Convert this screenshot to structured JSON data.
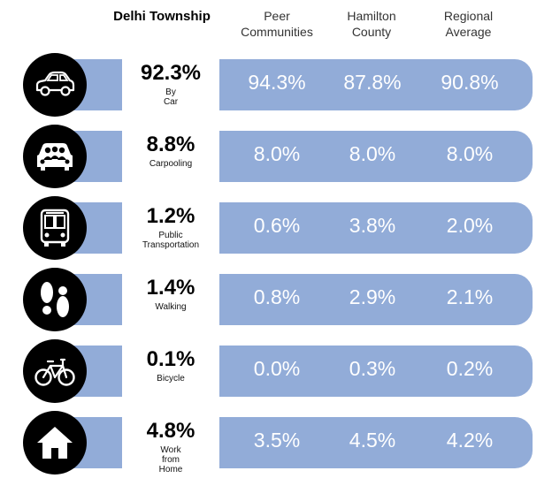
{
  "headers": {
    "delhi": "Delhi Township",
    "peer": "Peer Communities",
    "hamilton": "Hamilton County",
    "regional": "Regional Average"
  },
  "rows": [
    {
      "icon": "car-icon",
      "mode": "By Car",
      "delhi": "92.3%",
      "peer": "94.3%",
      "hamilton": "87.8%",
      "regional": "90.8%"
    },
    {
      "icon": "carpool-icon",
      "mode": "Carpooling",
      "delhi": "8.8%",
      "peer": "8.0%",
      "hamilton": "8.0%",
      "regional": "8.0%"
    },
    {
      "icon": "bus-icon",
      "mode": "Public Transportation",
      "delhi": "1.2%",
      "peer": "0.6%",
      "hamilton": "3.8%",
      "regional": "2.0%"
    },
    {
      "icon": "footprints-icon",
      "mode": "Walking",
      "delhi": "1.4%",
      "peer": "0.8%",
      "hamilton": "2.9%",
      "regional": "2.1%"
    },
    {
      "icon": "bicycle-icon",
      "mode": "Bicycle",
      "delhi": "0.1%",
      "peer": "0.0%",
      "hamilton": "0.3%",
      "regional": "0.2%"
    },
    {
      "icon": "home-icon",
      "mode": "Work from Home",
      "delhi": "4.8%",
      "peer": "3.5%",
      "hamilton": "4.5%",
      "regional": "4.2%"
    }
  ],
  "colors": {
    "bar": "#92acd8",
    "icon_bg": "#000000",
    "value_text": "#ffffff"
  },
  "chart_data": {
    "type": "table",
    "columns": [
      "Delhi Township",
      "Peer Communities",
      "Hamilton County",
      "Regional Average"
    ],
    "categories": [
      "By Car",
      "Carpooling",
      "Public Transportation",
      "Walking",
      "Bicycle",
      "Work from Home"
    ],
    "series": [
      {
        "name": "Delhi Township",
        "values": [
          92.3,
          8.8,
          1.2,
          1.4,
          0.1,
          4.8
        ]
      },
      {
        "name": "Peer Communities",
        "values": [
          94.3,
          8.0,
          0.6,
          0.8,
          0.0,
          3.5
        ]
      },
      {
        "name": "Hamilton County",
        "values": [
          87.8,
          8.0,
          3.8,
          2.9,
          0.3,
          4.5
        ]
      },
      {
        "name": "Regional Average",
        "values": [
          90.8,
          8.0,
          2.0,
          2.1,
          0.2,
          4.2
        ]
      }
    ],
    "unit": "%"
  }
}
